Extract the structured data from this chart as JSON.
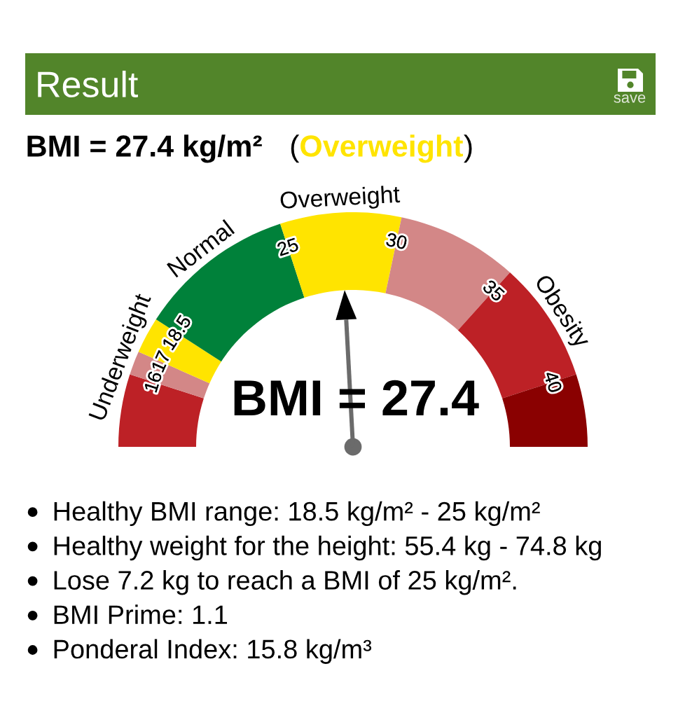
{
  "chart_data": {
    "type": "donut",
    "title": "Result",
    "subtitle": "BMI = 27.4 kg/m² (Overweight)",
    "categories": [
      null,
      "Underweight",
      null,
      "Normal",
      "Overweight",
      null,
      "Obesity",
      null
    ],
    "values": [
      10,
      3.3,
      5,
      21.7,
      16.7,
      16.7,
      16.7,
      10
    ],
    "colors": [
      "#bd2126",
      "#d38787",
      "#ffe400",
      "#00813a",
      "#ffe400",
      "#d38787",
      "#bd2126",
      "#8a0101"
    ],
    "needle": "Overweight",
    "annotations": [
      "16",
      "17",
      "18.5",
      "25",
      "30",
      "35",
      "40",
      "save",
      "BMI = 27.4",
      "Healthy BMI range: 18.5 kg/m² - 25 kg/m²",
      "Healthy weight for the height: 55.4 kg - 74.8 kg",
      "Lose 7.2 kg to reach a BMI of 25 kg/m².",
      "BMI Prime: 1.1",
      "Ponderal Index: 15.8 kg/m³"
    ]
  }
}
